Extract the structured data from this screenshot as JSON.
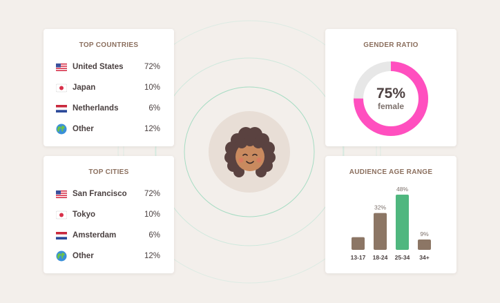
{
  "top_countries": {
    "title": "TOP COUNTRIES",
    "items": [
      {
        "flag": "us-flag-icon",
        "name": "United States",
        "pct": "72%"
      },
      {
        "flag": "japan-flag-icon",
        "name": "Japan",
        "pct": "10%"
      },
      {
        "flag": "netherlands-flag-icon",
        "name": "Netherlands",
        "pct": "6%"
      },
      {
        "flag": "globe-icon",
        "name": "Other",
        "pct": "12%"
      }
    ]
  },
  "top_cities": {
    "title": "TOP CITIES",
    "items": [
      {
        "flag": "us-flag-icon",
        "name": "San Francisco",
        "pct": "72%"
      },
      {
        "flag": "japan-flag-icon",
        "name": "Tokyo",
        "pct": "10%"
      },
      {
        "flag": "netherlands-flag-icon",
        "name": "Amsterdam",
        "pct": "6%"
      },
      {
        "flag": "globe-icon",
        "name": "Other",
        "pct": "12%"
      }
    ]
  },
  "gender_ratio": {
    "title": "GENDER RATIO",
    "value": "75%",
    "label": "female",
    "fraction": 0.75,
    "color": "#ff4fbf",
    "track_color": "#e7e7e7"
  },
  "age_range": {
    "title": "AUDIENCE AGE RANGE",
    "chart_data": {
      "type": "bar",
      "categories": [
        "13-17",
        "18-24",
        "25-34",
        "34+"
      ],
      "values": [
        11,
        32,
        48,
        9
      ],
      "data_labels": [
        "",
        "32%",
        "48%",
        "9%"
      ],
      "ylim": [
        0,
        48
      ],
      "highlight_index": 2,
      "colors": {
        "default": "#8c7665",
        "highlight": "#4fb77f"
      }
    }
  },
  "avatar": {
    "icon": "user-avatar-icon"
  },
  "colors": {
    "background": "#f3efeb",
    "ring": "#cde8dc",
    "ring_accent": "#8fd3b4",
    "title": "#8b6f5e"
  }
}
